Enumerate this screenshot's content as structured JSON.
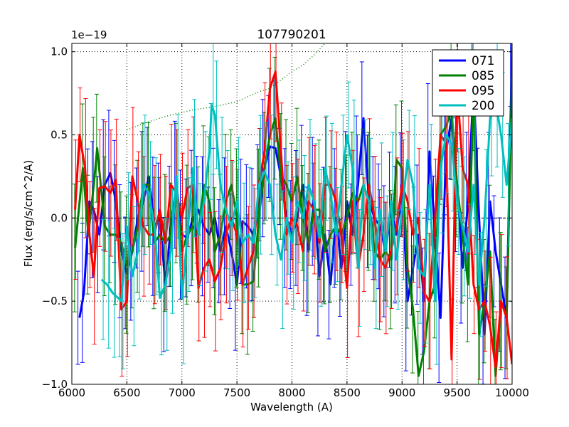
{
  "chart_data": {
    "type": "line",
    "title": "107790201",
    "xlabel": "Wavelength (A)",
    "ylabel": "Flux (erg/s/cm^2/A)",
    "offset_label": "1e−19",
    "xlim": [
      6000,
      10000
    ],
    "ylim": [
      -1.0,
      1.05
    ],
    "xticks": [
      6000,
      6500,
      7000,
      7500,
      8000,
      8500,
      9000,
      9500,
      10000
    ],
    "xtick_labels": [
      "6000",
      "6500",
      "7000",
      "7500",
      "8000",
      "8500",
      "9000",
      "9500",
      "10000"
    ],
    "yticks": [
      -1.0,
      -0.5,
      0.0,
      0.5,
      1.0
    ],
    "ytick_labels": [
      "−1.0",
      "−0.5",
      "0.0",
      "0.5",
      "1.0"
    ],
    "grid": true,
    "legend_position": "top-right",
    "reference_line": {
      "name": "dotted-reference",
      "color": "#008000",
      "x": [
        6500,
        6700,
        6900,
        7100,
        7300,
        7500,
        7600,
        7700,
        7800,
        7900,
        8000,
        8100,
        8200,
        8300
      ],
      "y": [
        0.53,
        0.58,
        0.62,
        0.65,
        0.67,
        0.7,
        0.73,
        0.76,
        0.78,
        0.83,
        0.88,
        0.92,
        0.98,
        1.05
      ]
    },
    "series": [
      {
        "name": "071",
        "color": "#0000ff",
        "x": [
          6070,
          6110,
          6160,
          6200,
          6250,
          6300,
          6350,
          6400,
          6450,
          6500,
          6550,
          6600,
          6650,
          6700,
          6750,
          6800,
          6850,
          6900,
          6950,
          7000,
          7050,
          7100,
          7150,
          7200,
          7250,
          7300,
          7350,
          7400,
          7450,
          7500,
          7550,
          7600,
          7650,
          7700,
          7750,
          7800,
          7850,
          7900,
          7950,
          8000,
          8050,
          8100,
          8150,
          8200,
          8250,
          8300,
          8350,
          8400,
          8450,
          8500,
          8550,
          8600,
          8650,
          8700,
          8750,
          8800,
          8850,
          8900,
          8950,
          9000,
          9050,
          9100,
          9150,
          9200,
          9250,
          9300,
          9350,
          9400,
          9450,
          9500,
          9550,
          9600,
          9650,
          9700,
          9750,
          9800,
          9850,
          9900,
          9950,
          10000
        ],
        "y": [
          -0.6,
          -0.45,
          0.1,
          0.05,
          -0.1,
          0.2,
          0.27,
          0.1,
          -0.2,
          -0.33,
          -0.2,
          0.0,
          0.1,
          0.25,
          -0.05,
          0.0,
          -0.4,
          -0.05,
          0.2,
          -0.1,
          -0.12,
          0.0,
          0.05,
          -0.05,
          -0.1,
          0.0,
          -0.2,
          -0.05,
          -0.2,
          -0.4,
          -0.02,
          -0.05,
          -0.1,
          0.1,
          0.3,
          0.43,
          0.42,
          0.25,
          0.0,
          -0.1,
          0.0,
          0.2,
          -0.2,
          0.1,
          -0.35,
          -0.1,
          -0.4,
          0.0,
          -0.3,
          0.1,
          -0.1,
          0.2,
          0.6,
          0.1,
          0.0,
          -0.05,
          -0.2,
          0.05,
          -0.1,
          0.2,
          -0.5,
          -0.3,
          -0.1,
          -0.5,
          0.4,
          -0.1,
          -0.6,
          0.4,
          0.6,
          0.2,
          -0.3,
          0.1,
          0.8,
          0.0,
          -0.7,
          0.1,
          -0.2,
          -0.4,
          -0.6,
          1.05
        ]
      },
      {
        "name": "085",
        "color": "#008000",
        "x": [
          6030,
          6100,
          6150,
          6200,
          6230,
          6300,
          6350,
          6400,
          6450,
          6500,
          6550,
          6600,
          6650,
          6700,
          6750,
          6800,
          6850,
          6900,
          6950,
          7000,
          7050,
          7100,
          7150,
          7200,
          7250,
          7300,
          7350,
          7400,
          7450,
          7500,
          7550,
          7600,
          7650,
          7700,
          7750,
          7800,
          7850,
          7900,
          7950,
          8000,
          8050,
          8100,
          8150,
          8200,
          8250,
          8300,
          8350,
          8400,
          8450,
          8500,
          8550,
          8600,
          8650,
          8700,
          8750,
          8800,
          8850,
          8900,
          8950,
          9000,
          9050,
          9100,
          9150,
          9200,
          9250,
          9300,
          9350,
          9400,
          9450,
          9500,
          9550,
          9600,
          9650,
          9700,
          9750,
          9800,
          9850,
          9900,
          9950,
          10000
        ],
        "y": [
          -0.18,
          0.3,
          -0.1,
          0.2,
          0.42,
          -0.05,
          -0.1,
          -0.1,
          -0.15,
          -0.28,
          -0.2,
          -0.05,
          0.2,
          0.2,
          -0.15,
          -0.1,
          -0.15,
          -0.1,
          0.15,
          -0.2,
          -0.1,
          -0.05,
          -0.1,
          0.2,
          0.1,
          -0.2,
          -0.1,
          0.1,
          0.2,
          0.0,
          -0.4,
          -0.4,
          -0.38,
          0.0,
          0.3,
          0.5,
          0.6,
          0.25,
          0.2,
          0.1,
          0.25,
          0.0,
          -0.15,
          0.05,
          0.05,
          -0.2,
          -0.1,
          -0.05,
          -0.1,
          0.0,
          0.15,
          0.1,
          0.2,
          0.1,
          -0.2,
          -0.25,
          -0.2,
          -0.25,
          0.35,
          0.3,
          -0.3,
          -0.55,
          -0.95,
          -0.8,
          -0.5,
          -0.4,
          0.5,
          0.55,
          0.65,
          0.2,
          -0.1,
          -0.4,
          0.8,
          -0.7,
          -0.5,
          -0.2,
          -0.95,
          -0.5,
          -0.6,
          0.85
        ]
      },
      {
        "name": "095",
        "color": "#ff0000",
        "x": [
          6030,
          6070,
          6120,
          6160,
          6200,
          6250,
          6300,
          6350,
          6400,
          6450,
          6500,
          6550,
          6600,
          6650,
          6700,
          6750,
          6800,
          6850,
          6900,
          6950,
          7000,
          7050,
          7100,
          7150,
          7200,
          7250,
          7300,
          7350,
          7400,
          7450,
          7500,
          7550,
          7600,
          7650,
          7700,
          7750,
          7800,
          7850,
          7900,
          7950,
          8000,
          8050,
          8100,
          8150,
          8200,
          8250,
          8300,
          8350,
          8400,
          8450,
          8500,
          8550,
          8600,
          8650,
          8700,
          8750,
          8800,
          8850,
          8900,
          8950,
          9000,
          9050,
          9100,
          9150,
          9200,
          9250,
          9300,
          9350,
          9400,
          9450,
          9500,
          9550,
          9600,
          9650,
          9700,
          9750,
          9800,
          9850,
          9900,
          9950,
          10000
        ],
        "y": [
          0.05,
          0.5,
          0.3,
          -0.1,
          -0.35,
          0.18,
          0.19,
          0.15,
          0.23,
          -0.55,
          -0.5,
          0.25,
          0.1,
          -0.05,
          -0.1,
          -0.1,
          0.05,
          -0.15,
          0.2,
          0.15,
          0.0,
          0.18,
          0.2,
          -0.42,
          -0.3,
          -0.25,
          -0.38,
          -0.3,
          -0.1,
          0.0,
          -0.1,
          -0.4,
          -0.3,
          -0.2,
          0.2,
          0.4,
          0.78,
          0.88,
          0.4,
          -0.1,
          0.0,
          -0.05,
          -0.2,
          0.1,
          0.05,
          -0.15,
          0.2,
          0.2,
          0.1,
          -0.1,
          -0.42,
          0.1,
          -0.3,
          -0.1,
          0.2,
          0.0,
          -0.25,
          -0.3,
          -0.2,
          -0.05,
          0.2,
          0.1,
          -0.1,
          0.0,
          -0.45,
          -0.5,
          0.0,
          0.5,
          0.45,
          -0.85,
          0.8,
          0.3,
          0.2,
          -0.4,
          -0.55,
          -0.5,
          -0.65,
          -0.9,
          -0.5,
          -0.6,
          -0.88
        ]
      },
      {
        "name": "200",
        "color": "#00bfbf",
        "x": [
          6270,
          6320,
          6370,
          6420,
          6450,
          6500,
          6550,
          6600,
          6650,
          6700,
          6750,
          6800,
          6850,
          6900,
          6950,
          7000,
          7050,
          7100,
          7150,
          7200,
          7250,
          7270,
          7300,
          7350,
          7400,
          7450,
          7500,
          7550,
          7600,
          7650,
          7700,
          7750,
          7800,
          7850,
          7900,
          7950,
          8000,
          8050,
          8100,
          8150,
          8200,
          8250,
          8300,
          8350,
          8400,
          8450,
          8500,
          8550,
          8600,
          8650,
          8700,
          8750,
          8800,
          8850,
          8900,
          8950,
          9000,
          9050,
          9100,
          9150,
          9200,
          9250,
          9300,
          9350,
          9400,
          9450,
          9500,
          9550,
          9600,
          9650,
          9700,
          9750,
          9800,
          9850,
          9900,
          9950,
          10000
        ],
        "y": [
          -0.37,
          -0.4,
          -0.45,
          -0.48,
          -0.5,
          -0.05,
          -0.35,
          -0.2,
          0.2,
          0.15,
          -0.05,
          -0.48,
          -0.4,
          -0.2,
          0.25,
          -0.48,
          -0.1,
          0.3,
          -0.1,
          0.1,
          0.4,
          0.68,
          0.62,
          0.2,
          0.05,
          -0.05,
          0.1,
          -0.15,
          -0.1,
          -0.15,
          0.2,
          0.28,
          0.2,
          -0.1,
          -0.25,
          0.0,
          -0.15,
          0.1,
          0.0,
          0.2,
          0.1,
          -0.12,
          0.3,
          0.15,
          -0.1,
          0.2,
          0.5,
          0.3,
          -0.3,
          0.2,
          0.1,
          -0.3,
          0.05,
          -0.2,
          0.1,
          -0.25,
          0.05,
          0.35,
          0.2,
          -0.3,
          -0.35,
          0.2,
          -0.5,
          0.3,
          0.5,
          0.45,
          0.1,
          -0.05,
          -0.2,
          0.2,
          -0.4,
          0.0,
          0.6,
          0.7,
          0.5,
          0.2,
          0.6
        ]
      }
    ]
  }
}
